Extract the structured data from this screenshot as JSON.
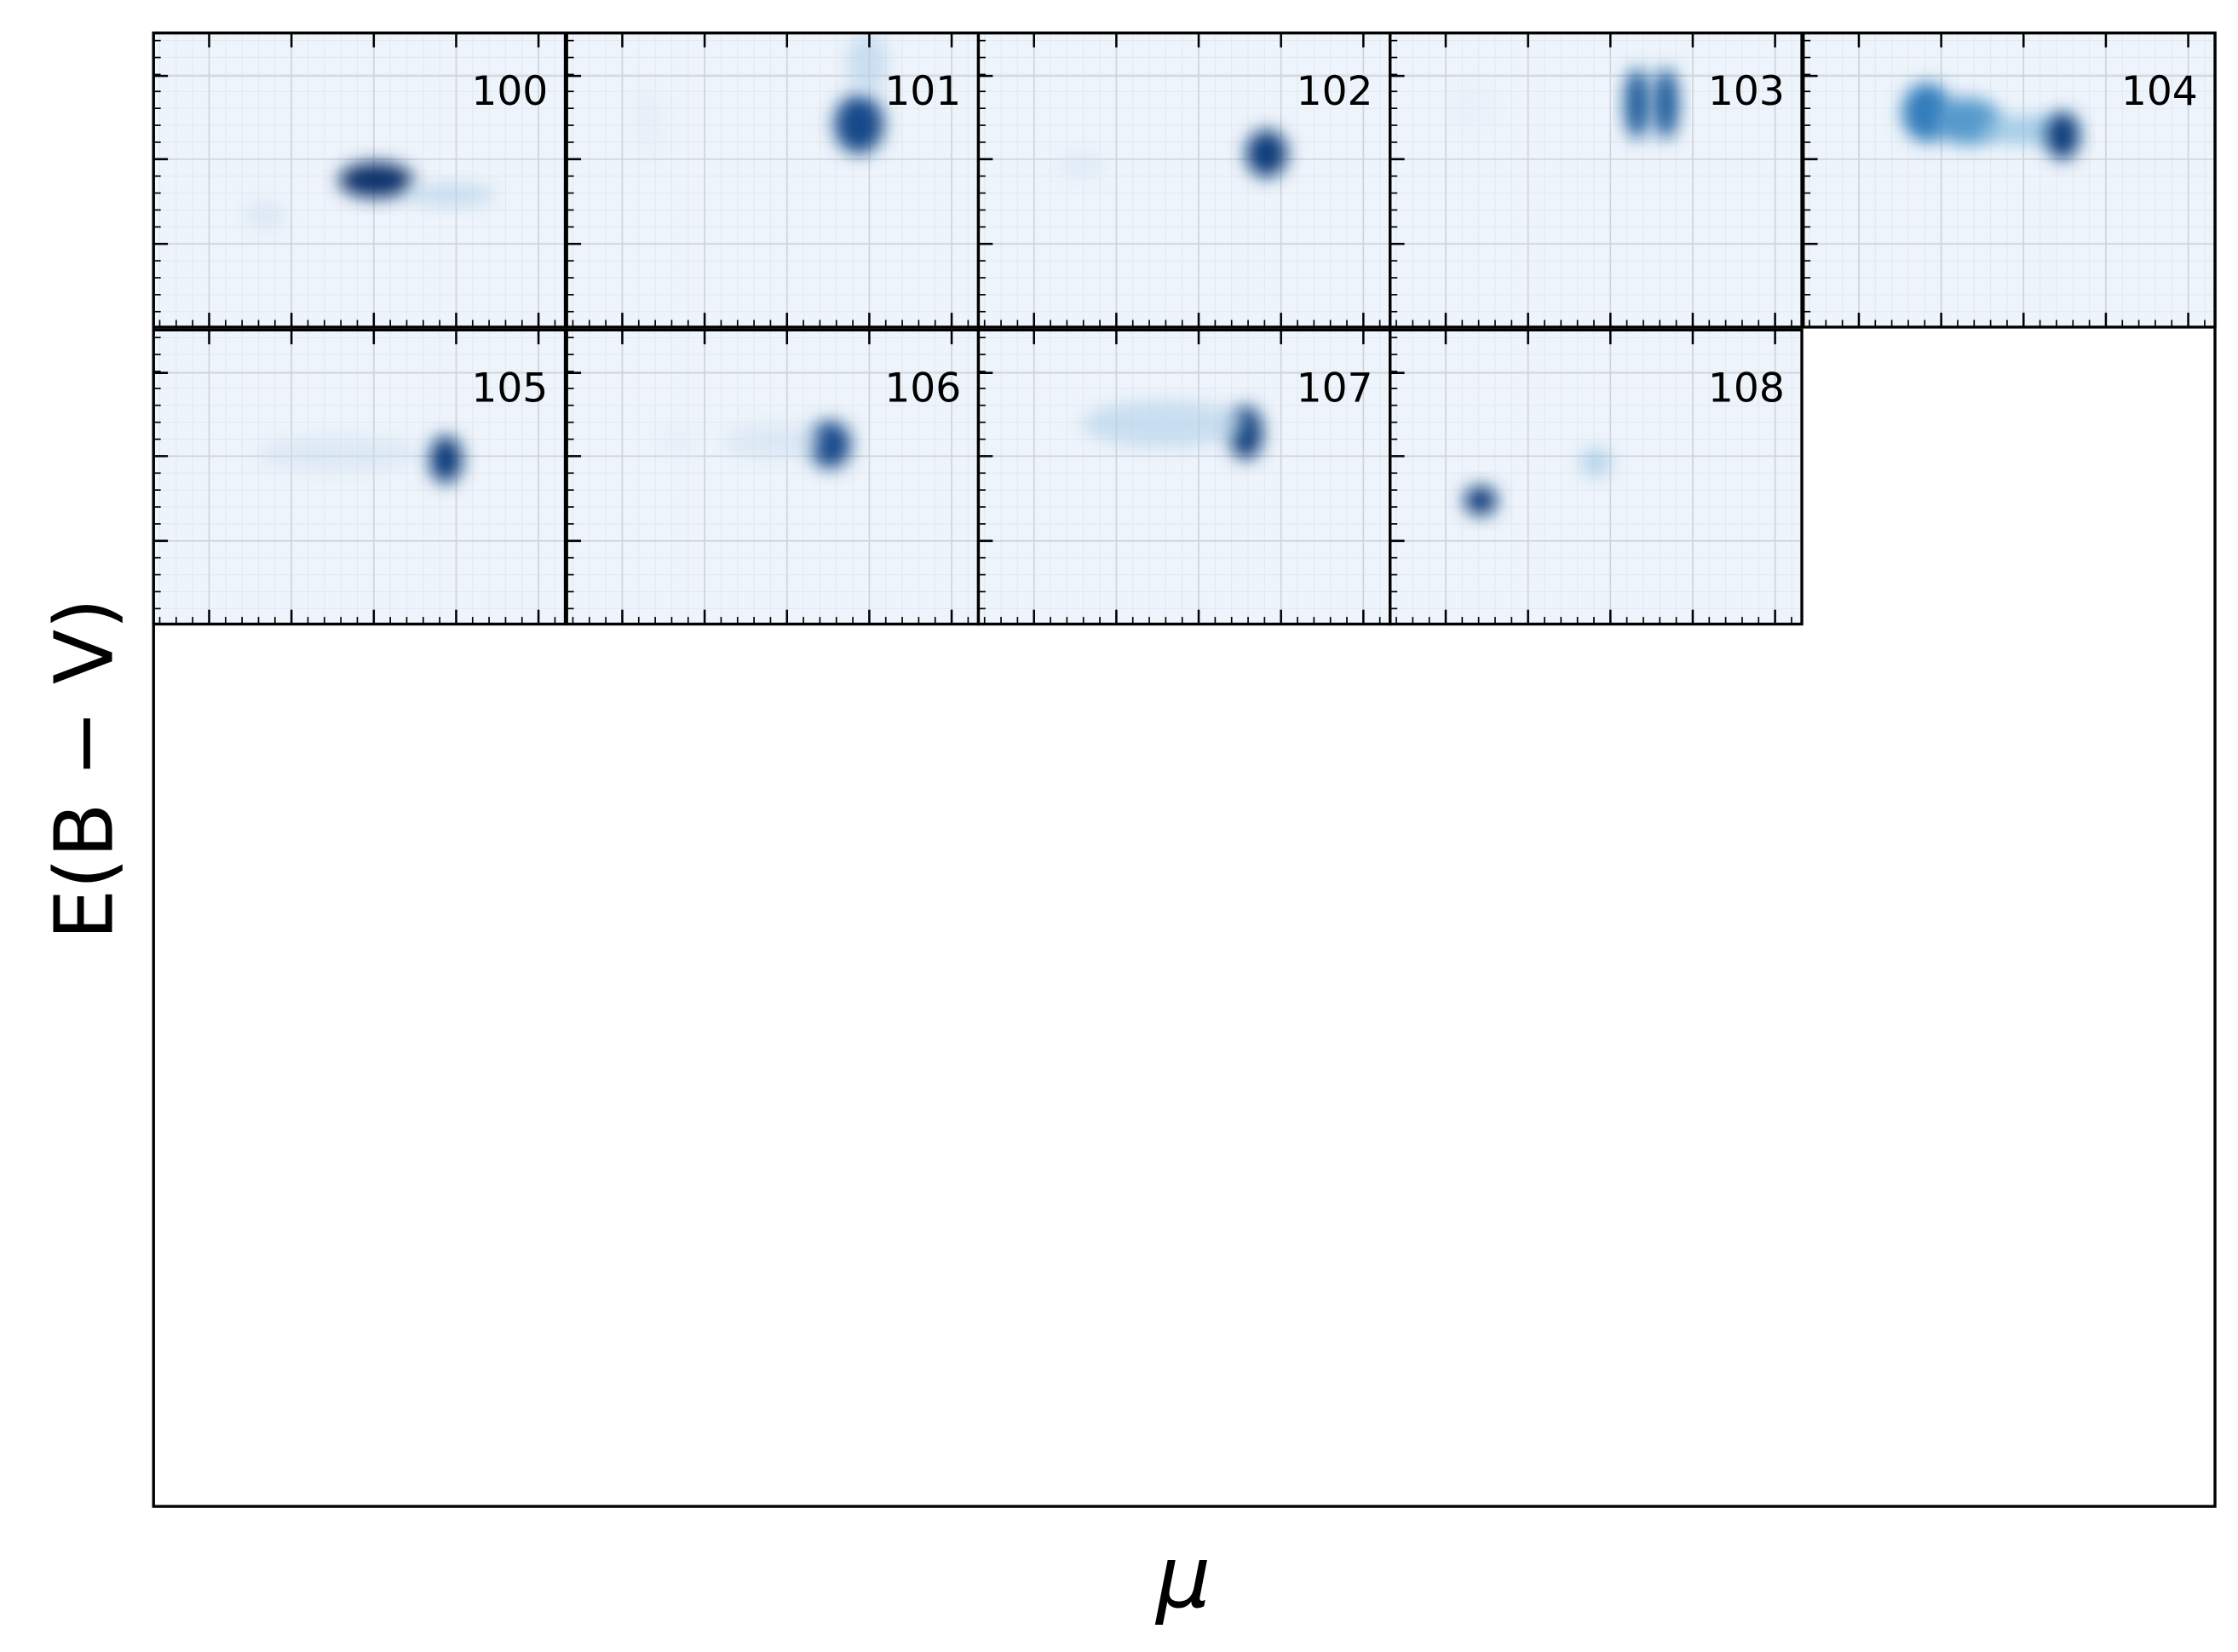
{
  "chart_data": {
    "type": "density-grid",
    "xlabel": "μ",
    "ylabel": "E(B − V)",
    "xlim": [
      0,
      1
    ],
    "ylim": [
      0,
      1
    ],
    "xticks": [
      0.135,
      0.335,
      0.535,
      0.735,
      0.935
    ],
    "yticks": [
      0.283,
      0.571,
      0.854
    ],
    "grid": true,
    "colormap": [
      "#eef4fb",
      "#c6dbef",
      "#6baed6",
      "#2171b5",
      "#08306b"
    ],
    "panels": [
      {
        "label": "100",
        "peaks": [
          {
            "x": 0.54,
            "y": 0.5,
            "sx": 0.09,
            "sy": 0.06,
            "density": 1.0
          },
          {
            "x": 0.72,
            "y": 0.45,
            "sx": 0.11,
            "sy": 0.04,
            "density": 0.3
          },
          {
            "x": 0.27,
            "y": 0.38,
            "sx": 0.05,
            "sy": 0.05,
            "density": 0.2
          }
        ]
      },
      {
        "label": "101",
        "peaks": [
          {
            "x": 0.71,
            "y": 0.69,
            "sx": 0.06,
            "sy": 0.1,
            "density": 0.9
          },
          {
            "x": 0.2,
            "y": 0.7,
            "sx": 0.04,
            "sy": 0.12,
            "density": 0.1
          },
          {
            "x": 0.73,
            "y": 0.9,
            "sx": 0.05,
            "sy": 0.1,
            "density": 0.3
          }
        ]
      },
      {
        "label": "102",
        "peaks": [
          {
            "x": 0.7,
            "y": 0.59,
            "sx": 0.05,
            "sy": 0.08,
            "density": 0.95
          },
          {
            "x": 0.25,
            "y": 0.55,
            "sx": 0.06,
            "sy": 0.05,
            "density": 0.15
          }
        ]
      },
      {
        "label": "103",
        "peaks": [
          {
            "x": 0.6,
            "y": 0.76,
            "sx": 0.03,
            "sy": 0.12,
            "density": 0.85
          },
          {
            "x": 0.67,
            "y": 0.76,
            "sx": 0.03,
            "sy": 0.12,
            "density": 0.85
          },
          {
            "x": 0.2,
            "y": 0.75,
            "sx": 0.06,
            "sy": 0.08,
            "density": 0.08
          }
        ]
      },
      {
        "label": "104",
        "peaks": [
          {
            "x": 0.3,
            "y": 0.73,
            "sx": 0.06,
            "sy": 0.1,
            "density": 0.7
          },
          {
            "x": 0.4,
            "y": 0.7,
            "sx": 0.08,
            "sy": 0.08,
            "density": 0.6
          },
          {
            "x": 0.55,
            "y": 0.67,
            "sx": 0.12,
            "sy": 0.05,
            "density": 0.4
          },
          {
            "x": 0.63,
            "y": 0.65,
            "sx": 0.04,
            "sy": 0.08,
            "density": 0.95
          }
        ]
      },
      {
        "label": "105",
        "peaks": [
          {
            "x": 0.71,
            "y": 0.56,
            "sx": 0.04,
            "sy": 0.08,
            "density": 0.95
          },
          {
            "x": 0.45,
            "y": 0.58,
            "sx": 0.2,
            "sy": 0.06,
            "density": 0.2
          }
        ]
      },
      {
        "label": "106",
        "peaks": [
          {
            "x": 0.64,
            "y": 0.61,
            "sx": 0.05,
            "sy": 0.08,
            "density": 0.9
          },
          {
            "x": 0.5,
            "y": 0.62,
            "sx": 0.12,
            "sy": 0.06,
            "density": 0.2
          },
          {
            "x": 0.27,
            "y": 0.62,
            "sx": 0.05,
            "sy": 0.06,
            "density": 0.1
          }
        ]
      },
      {
        "label": "107",
        "peaks": [
          {
            "x": 0.65,
            "y": 0.65,
            "sx": 0.04,
            "sy": 0.09,
            "density": 0.95
          },
          {
            "x": 0.45,
            "y": 0.68,
            "sx": 0.2,
            "sy": 0.08,
            "density": 0.3
          }
        ]
      },
      {
        "label": "108",
        "peaks": [
          {
            "x": 0.22,
            "y": 0.42,
            "sx": 0.04,
            "sy": 0.05,
            "density": 0.95
          },
          {
            "x": 0.5,
            "y": 0.55,
            "sx": 0.04,
            "sy": 0.05,
            "density": 0.35
          }
        ]
      }
    ]
  }
}
